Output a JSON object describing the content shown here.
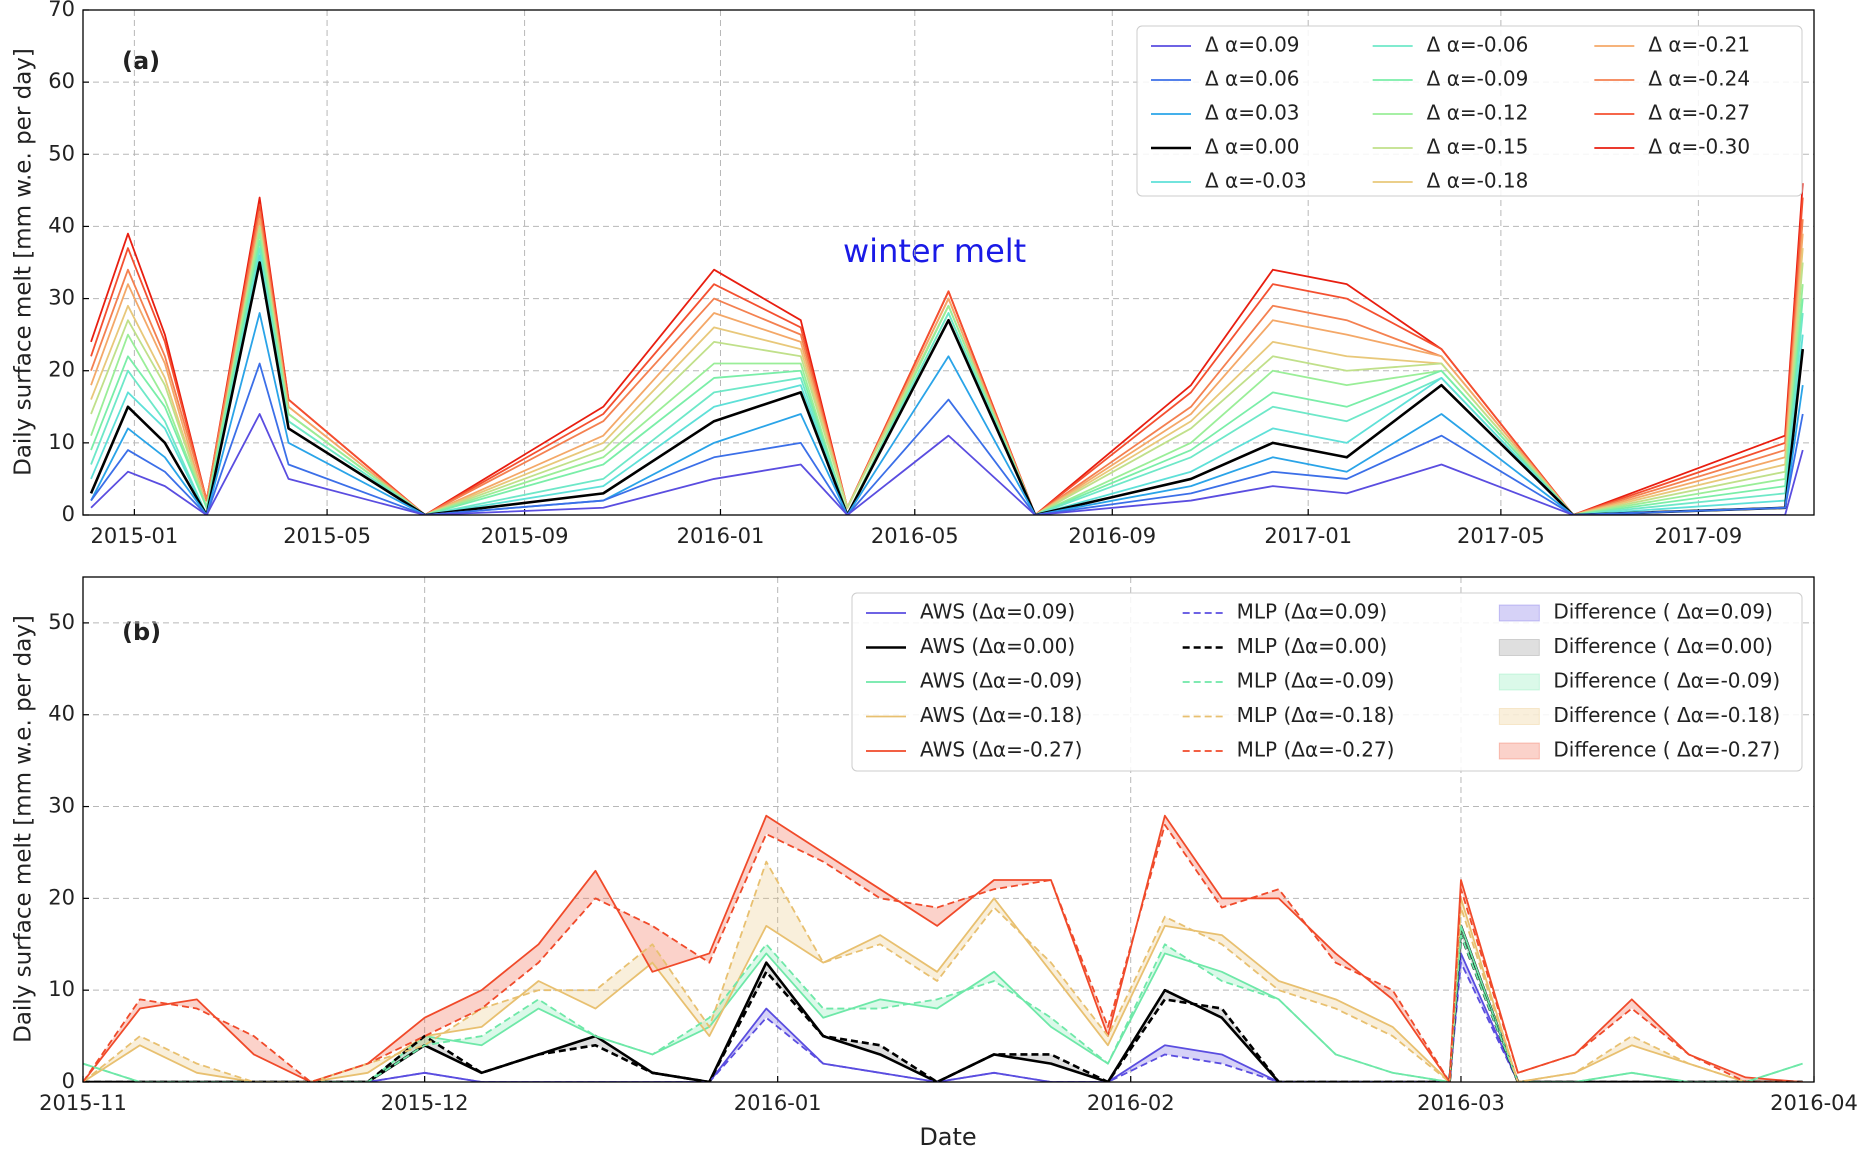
{
  "chart_data": [
    {
      "type": "line",
      "panel_label": "(a)",
      "annotation": "winter melt",
      "annotation_color": "#1a1ae6",
      "ylabel": "Daily surface melt [mm w.e. per day]",
      "x": [
        "2014-12-05",
        "2014-12-28",
        "2015-01-20",
        "2015-02-15",
        "2015-03-20",
        "2015-04-07",
        "2015-07-01",
        "2015-10-20",
        "2015-12-28",
        "2016-02-20",
        "2016-03-20",
        "2016-05-22",
        "2016-07-15",
        "2016-10-20",
        "2016-12-10",
        "2017-01-25",
        "2017-03-25",
        "2017-06-15",
        "2017-10-25",
        "2017-11-05"
      ],
      "xlim": [
        "2014-11-30",
        "2017-11-12"
      ],
      "xticks": [
        {
          "value": "2015-01-01",
          "label": "2015-01"
        },
        {
          "value": "2015-05-01",
          "label": "2015-05"
        },
        {
          "value": "2015-09-01",
          "label": "2015-09"
        },
        {
          "value": "2016-01-01",
          "label": "2016-01"
        },
        {
          "value": "2016-05-01",
          "label": "2016-05"
        },
        {
          "value": "2016-09-01",
          "label": "2016-09"
        },
        {
          "value": "2017-01-01",
          "label": "2017-01"
        },
        {
          "value": "2017-05-01",
          "label": "2017-05"
        },
        {
          "value": "2017-09-01",
          "label": "2017-09"
        }
      ],
      "ylim": [
        0,
        70
      ],
      "yticks": [
        0,
        10,
        20,
        30,
        40,
        50,
        60,
        70
      ],
      "grid": true,
      "legend": "upper right",
      "legend_columns": 3,
      "series": [
        {
          "name": "Δ α=0.09",
          "color": "#5a4de0",
          "values": [
            1,
            6,
            4,
            0,
            14,
            5,
            0,
            1,
            5,
            7,
            0,
            11,
            0,
            2,
            4,
            3,
            7,
            0,
            0,
            9
          ]
        },
        {
          "name": "Δ α=0.06",
          "color": "#3b6fe8",
          "values": [
            2,
            9,
            6,
            0,
            21,
            7,
            0,
            2,
            8,
            10,
            0,
            16,
            0,
            3,
            6,
            5,
            11,
            0,
            1,
            14
          ]
        },
        {
          "name": "Δ α=0.03",
          "color": "#2aa4e8",
          "values": [
            2,
            12,
            8,
            0,
            28,
            10,
            0,
            2,
            10,
            14,
            0,
            22,
            0,
            4,
            8,
            6,
            14,
            0,
            1,
            18
          ]
        },
        {
          "name": "Δ α=0.00",
          "color": "#000000",
          "values": [
            3,
            15,
            10,
            0,
            35,
            12,
            0,
            3,
            13,
            17,
            0,
            27,
            0,
            5,
            10,
            8,
            18,
            0,
            1,
            23
          ]
        },
        {
          "name": "Δ α=-0.03",
          "color": "#5ee0d8",
          "values": [
            5,
            17,
            12,
            0,
            36,
            12,
            0,
            4,
            15,
            18,
            0,
            27,
            0,
            6,
            12,
            10,
            19,
            0,
            2,
            25
          ]
        },
        {
          "name": "Δ α=-0.06",
          "color": "#6ee8c8",
          "values": [
            7,
            20,
            13,
            0,
            37,
            13,
            0,
            5,
            17,
            19,
            0,
            28,
            0,
            8,
            15,
            13,
            19,
            0,
            3,
            28
          ]
        },
        {
          "name": "Δ α=-0.09",
          "color": "#7aeea8",
          "values": [
            9,
            22,
            15,
            1,
            38,
            13,
            0,
            7,
            19,
            20,
            0,
            28,
            0,
            9,
            17,
            15,
            20,
            0,
            4,
            30
          ]
        },
        {
          "name": "Δ α=-0.12",
          "color": "#9aee98",
          "values": [
            11,
            25,
            16,
            1,
            39,
            14,
            0,
            8,
            21,
            21,
            0,
            29,
            0,
            10,
            20,
            18,
            20,
            0,
            5,
            32
          ]
        },
        {
          "name": "Δ α=-0.15",
          "color": "#c0e08a",
          "values": [
            14,
            27,
            18,
            1,
            40,
            14,
            0,
            9,
            24,
            22,
            1,
            29,
            0,
            12,
            22,
            20,
            21,
            0,
            6,
            35
          ]
        },
        {
          "name": "Δ α=-0.18",
          "color": "#e8c87a",
          "values": [
            16,
            29,
            19,
            1,
            40,
            14,
            0,
            10,
            26,
            23,
            1,
            29,
            0,
            13,
            24,
            22,
            21,
            0,
            7,
            37
          ]
        },
        {
          "name": "Δ α=-0.21",
          "color": "#f4a868",
          "values": [
            18,
            32,
            21,
            1,
            41,
            15,
            0,
            11,
            28,
            24,
            1,
            30,
            0,
            14,
            27,
            25,
            22,
            0,
            8,
            39
          ]
        },
        {
          "name": "Δ α=-0.24",
          "color": "#f48050",
          "values": [
            20,
            34,
            22,
            2,
            42,
            15,
            0,
            13,
            30,
            25,
            1,
            30,
            0,
            15,
            29,
            27,
            22,
            0,
            9,
            41
          ]
        },
        {
          "name": "Δ α=-0.27",
          "color": "#f45030",
          "values": [
            22,
            37,
            24,
            2,
            43,
            16,
            0,
            14,
            32,
            26,
            1,
            31,
            0,
            17,
            32,
            30,
            23,
            0,
            10,
            44
          ]
        },
        {
          "name": "Δ α=-0.30",
          "color": "#e81e10",
          "values": [
            24,
            39,
            25,
            2,
            44,
            16,
            0,
            15,
            34,
            27,
            1,
            31,
            0,
            18,
            34,
            32,
            23,
            0,
            11,
            46
          ]
        }
      ]
    },
    {
      "type": "line",
      "panel_label": "(b)",
      "ylabel": "Daily surface melt [mm w.e. per day]",
      "xlabel": "Date",
      "x": [
        "2015-11-01",
        "2015-11-06",
        "2015-11-11",
        "2015-11-16",
        "2015-11-21",
        "2015-11-26",
        "2015-12-01",
        "2015-12-06",
        "2015-12-11",
        "2015-12-16",
        "2015-12-21",
        "2015-12-26",
        "2015-12-31",
        "2016-01-05",
        "2016-01-10",
        "2016-01-15",
        "2016-01-20",
        "2016-01-25",
        "2016-01-30",
        "2016-02-04",
        "2016-02-09",
        "2016-02-14",
        "2016-02-19",
        "2016-02-24",
        "2016-02-29",
        "2016-03-01",
        "2016-03-06",
        "2016-03-11",
        "2016-03-16",
        "2016-03-21",
        "2016-03-26",
        "2016-03-31"
      ],
      "xlim": [
        "2015-11-01",
        "2016-04-01"
      ],
      "xticks": [
        {
          "value": "2015-11-01",
          "label": "2015-11"
        },
        {
          "value": "2015-12-01",
          "label": "2015-12"
        },
        {
          "value": "2016-01-01",
          "label": "2016-01"
        },
        {
          "value": "2016-02-01",
          "label": "2016-02"
        },
        {
          "value": "2016-03-01",
          "label": "2016-03"
        },
        {
          "value": "2016-04-01",
          "label": "2016-04"
        }
      ],
      "ylim": [
        0,
        55
      ],
      "yticks": [
        0,
        10,
        20,
        30,
        40,
        50
      ],
      "grid": true,
      "legend": "upper right",
      "legend_columns": 3,
      "series": [
        {
          "name": "AWS (Δα=0.09)",
          "color": "#5a4de0",
          "linestyle": "solid",
          "values": [
            0,
            0,
            0,
            0,
            0,
            0,
            1,
            0,
            0,
            0,
            0,
            0,
            8,
            2,
            1,
            0,
            1,
            0,
            0,
            4,
            3,
            0,
            0,
            0,
            0,
            14,
            0,
            0,
            0,
            0,
            0,
            0
          ]
        },
        {
          "name": "AWS (Δα=0.00)",
          "color": "#000000",
          "linestyle": "solid",
          "values": [
            0,
            0,
            0,
            0,
            0,
            0,
            4,
            1,
            3,
            5,
            1,
            0,
            13,
            5,
            3,
            0,
            3,
            2,
            0,
            10,
            7,
            0,
            0,
            0,
            0,
            17,
            0,
            0,
            0,
            0,
            0,
            0
          ]
        },
        {
          "name": "AWS (Δα=-0.09)",
          "color": "#6ee8a8",
          "linestyle": "solid",
          "values": [
            2,
            0,
            0,
            0,
            0,
            0,
            5,
            4,
            8,
            5,
            3,
            6,
            14,
            7,
            9,
            8,
            12,
            6,
            2,
            14,
            12,
            9,
            3,
            1,
            0,
            17,
            0,
            0,
            1,
            0,
            0,
            2
          ]
        },
        {
          "name": "AWS (Δα=-0.18)",
          "color": "#e8c070",
          "linestyle": "solid",
          "values": [
            0,
            4,
            1,
            0,
            0,
            1,
            5,
            6,
            11,
            8,
            13,
            5,
            17,
            13,
            16,
            12,
            20,
            12,
            4,
            17,
            16,
            11,
            9,
            6,
            0,
            20,
            0,
            1,
            4,
            2,
            0,
            0
          ]
        },
        {
          "name": "AWS (Δα=-0.27)",
          "color": "#f04a2a",
          "linestyle": "solid",
          "values": [
            0,
            8,
            9,
            3,
            0,
            2,
            7,
            10,
            15,
            23,
            12,
            14,
            29,
            25,
            21,
            17,
            22,
            22,
            5,
            29,
            20,
            20,
            14,
            9,
            0,
            22,
            1,
            3,
            9,
            3,
            0.5,
            0
          ]
        },
        {
          "name": "MLP (Δα=0.09)",
          "color": "#5a4de0",
          "linestyle": "dashed",
          "values": [
            0,
            0,
            0,
            0,
            0,
            0,
            1,
            0,
            0,
            0,
            0,
            0,
            7,
            2,
            1,
            0,
            1,
            0,
            0,
            3,
            2,
            0,
            0,
            0,
            0,
            13,
            0,
            0,
            0,
            0,
            0,
            0
          ]
        },
        {
          "name": "MLP (Δα=0.00)",
          "color": "#000000",
          "linestyle": "dashed",
          "values": [
            0,
            0,
            0,
            0,
            0,
            0,
            5,
            1,
            3,
            4,
            1,
            0,
            12,
            5,
            4,
            0,
            3,
            3,
            0,
            9,
            8,
            0,
            0,
            0,
            0,
            16,
            0,
            0,
            0,
            0,
            0,
            0
          ]
        },
        {
          "name": "MLP (Δα=-0.09)",
          "color": "#6ee8a8",
          "linestyle": "dashed",
          "values": [
            2,
            0,
            0,
            0,
            0,
            0,
            4,
            5,
            9,
            5,
            3,
            7,
            15,
            8,
            8,
            9,
            11,
            7,
            2,
            15,
            11,
            9,
            3,
            1,
            0,
            16,
            0,
            0,
            1,
            0,
            0,
            2
          ]
        },
        {
          "name": "MLP (Δα=-0.18)",
          "color": "#e8c070",
          "linestyle": "dashed",
          "values": [
            0,
            5,
            2,
            0,
            0,
            2,
            4,
            8,
            10,
            10,
            15,
            6,
            24,
            13,
            15,
            11,
            19,
            13,
            5,
            18,
            15,
            10,
            8,
            5,
            0,
            19,
            0,
            1,
            5,
            2,
            0,
            0
          ]
        },
        {
          "name": "MLP (Δα=-0.27)",
          "color": "#f04a2a",
          "linestyle": "dashed",
          "values": [
            0,
            9,
            8,
            5,
            0,
            2,
            5,
            8,
            13,
            20,
            17,
            13,
            27,
            24,
            20,
            19,
            21,
            22,
            6,
            28,
            19,
            21,
            13,
            10,
            0,
            21,
            1,
            3,
            8,
            3,
            0,
            0
          ]
        }
      ],
      "fills": [
        {
          "name": "Difference ( Δα=0.09)",
          "color": "#5a4de0"
        },
        {
          "name": "Difference ( Δα=0.00)",
          "color": "#808080"
        },
        {
          "name": "Difference ( Δα=-0.09)",
          "color": "#6ee8a8"
        },
        {
          "name": "Difference ( Δα=-0.18)",
          "color": "#e8c070"
        },
        {
          "name": "Difference ( Δα=-0.27)",
          "color": "#f04a2a"
        }
      ]
    }
  ]
}
